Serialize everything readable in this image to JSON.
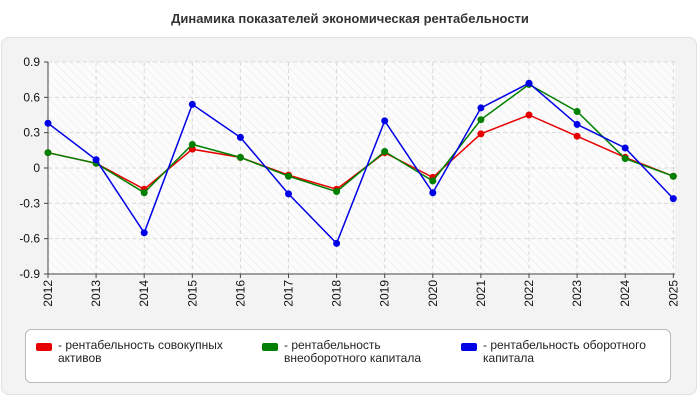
{
  "title": "Динамика показателей экономическая рентабельности",
  "chart_data": {
    "type": "line",
    "x": [
      "2012",
      "2013",
      "2014",
      "2015",
      "2016",
      "2017",
      "2018",
      "2019",
      "2020",
      "2021",
      "2022",
      "2023",
      "2024",
      "2025"
    ],
    "ylim": [
      -0.9,
      0.9
    ],
    "yticks": [
      "0.9",
      "0.6",
      "0.3",
      "0",
      "-0.3",
      "-0.6",
      "-0.9"
    ],
    "grid": true,
    "legend_position": "bottom",
    "series": [
      {
        "name": "- рентабельность совокупных активов",
        "color": "#e60000",
        "values": [
          0.13,
          0.04,
          -0.18,
          0.16,
          0.09,
          -0.06,
          -0.18,
          0.13,
          -0.08,
          0.29,
          0.45,
          0.27,
          0.09,
          -0.07
        ]
      },
      {
        "name": "- рентабельность внеоборотного капитала",
        "color": "#008000",
        "values": [
          0.13,
          0.04,
          -0.21,
          0.2,
          0.09,
          -0.07,
          -0.2,
          0.14,
          -0.11,
          0.41,
          0.71,
          0.48,
          0.08,
          -0.07
        ]
      },
      {
        "name": "- рентабельность оборотного капитала",
        "color": "#0000e6",
        "values": [
          0.38,
          0.07,
          -0.55,
          0.54,
          0.26,
          -0.22,
          -0.64,
          0.4,
          -0.21,
          0.51,
          0.72,
          0.37,
          0.17,
          -0.26
        ]
      }
    ]
  }
}
